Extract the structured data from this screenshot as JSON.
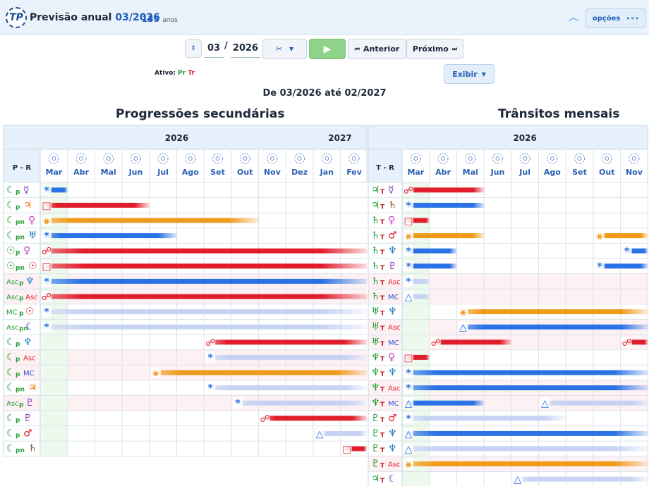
{
  "header": {
    "title_prefix": "Previsão anual",
    "title_date": "03/2026",
    "age_value": "135",
    "age_unit": "anos",
    "options_label": "opções"
  },
  "toolbar": {
    "month": "03",
    "year": "2026",
    "prev_label": "Anterior",
    "next_label": "Próximo",
    "show_label": "Exibir"
  },
  "active": {
    "label": "Ativo:",
    "codes": [
      "Pr",
      "Tr"
    ]
  },
  "range_text": "De 03/2026 até 02/2027",
  "colors": {
    "blue": "#2a72e6",
    "red": "#e01e2b",
    "orange": "#f09a1a",
    "light_blue": "#c7d3f3",
    "pink_row": "#fdf1f4",
    "green_col": "#eef9ee"
  },
  "progressions": {
    "title": "Progressões secundárias",
    "header_label": "P - R",
    "years": [
      {
        "label": "2026",
        "span": 10
      },
      {
        "label": "2027",
        "span": 2
      }
    ],
    "months": [
      "Mar",
      "Abr",
      "Mai",
      "Jun",
      "Jul",
      "Ago",
      "Set",
      "Out",
      "Nov",
      "Dez",
      "Jan",
      "Fev"
    ],
    "rows": [
      {
        "p": "☾",
        "ps": "p",
        "r": "☿",
        "rc": "#7b3fc4",
        "aspect": "*",
        "start": 0,
        "end": 1,
        "color": "blue",
        "hl": false
      },
      {
        "p": "☾",
        "ps": "p",
        "r": "♃",
        "rc": "#ee7a1a",
        "aspect": "□",
        "start": 0,
        "end": 4,
        "color": "red",
        "hl": false
      },
      {
        "p": "☾",
        "ps": "pn",
        "r": "♀",
        "rc": "#c43fc4",
        "aspect": "⚹",
        "start": 0,
        "end": 8,
        "color": "orange",
        "hl": false
      },
      {
        "p": "☾",
        "ps": "pn",
        "r": "♅",
        "rc": "#1d7fc4",
        "aspect": "*",
        "start": 0,
        "end": 5,
        "color": "blue",
        "hl": false
      },
      {
        "p": "☉",
        "ps": "p",
        "r": "♀",
        "rc": "#c43fc4",
        "aspect": "☍",
        "start": 0,
        "end": 12,
        "color": "red",
        "hl": false
      },
      {
        "p": "☉",
        "ps": "pn",
        "r": "☉",
        "rc": "#e01e2b",
        "aspect": "□",
        "start": 0,
        "end": 12,
        "color": "red",
        "hl": false
      },
      {
        "p": "Asc",
        "ps": "p",
        "r": "♆",
        "rc": "#1d7fc4",
        "aspect": "*",
        "start": 0,
        "end": 12,
        "color": "blue",
        "hl": true
      },
      {
        "p": "Asc",
        "ps": "p",
        "r": "Asc",
        "rc": "#e01e2b",
        "aspect": "☍",
        "start": 0,
        "end": 12,
        "color": "red",
        "hl": true
      },
      {
        "p": "MC",
        "ps": "p",
        "r": "☉",
        "rc": "#e01e2b",
        "aspect": "*",
        "start": 0,
        "end": 12,
        "color": "light_blue",
        "hl": false
      },
      {
        "p": "Asc",
        "ps": "pn",
        "r": "☾",
        "rc": "#2a4fd0",
        "aspect": "*",
        "start": 0,
        "end": 12,
        "color": "light_blue",
        "hl": false
      },
      {
        "p": "☾",
        "ps": "p",
        "r": "♆",
        "rc": "#1d7fc4",
        "aspect": "☍",
        "start": 6,
        "end": 12,
        "color": "red",
        "hl": false
      },
      {
        "p": "☾",
        "ps": "p",
        "r": "Asc",
        "rc": "#e01e2b",
        "aspect": "*",
        "start": 6,
        "end": 12,
        "color": "light_blue",
        "hl": true
      },
      {
        "p": "☾",
        "ps": "p",
        "r": "MC",
        "rc": "#2a4fd0",
        "aspect": "⚹",
        "start": 4,
        "end": 12,
        "color": "orange",
        "hl": true
      },
      {
        "p": "☾",
        "ps": "pn",
        "r": "♃",
        "rc": "#ee7a1a",
        "aspect": "*",
        "start": 6,
        "end": 12,
        "color": "light_blue",
        "hl": false
      },
      {
        "p": "Asc",
        "ps": "p",
        "r": "♇",
        "rc": "#8a2fb8",
        "aspect": "*",
        "start": 7,
        "end": 12,
        "color": "light_blue",
        "hl": true
      },
      {
        "p": "☾",
        "ps": "p",
        "r": "♇",
        "rc": "#8a2fb8",
        "aspect": "☍",
        "start": 8,
        "end": 12,
        "color": "red",
        "hl": false
      },
      {
        "p": "☾",
        "ps": "p",
        "r": "♂",
        "rc": "#e01e2b",
        "aspect": "△",
        "start": 10,
        "end": 12,
        "color": "light_blue",
        "hl": false
      },
      {
        "p": "☾",
        "ps": "pn",
        "r": "♄",
        "rc": "#8a5a2b",
        "aspect": "□",
        "start": 11,
        "end": 12,
        "color": "red",
        "hl": false
      }
    ]
  },
  "transits": {
    "title": "Trânsitos mensais",
    "header_label": "T - R",
    "years": [
      {
        "label": "2026",
        "span": 9
      }
    ],
    "months": [
      "Mar",
      "Abr",
      "Mai",
      "Jun",
      "Jul",
      "Ago",
      "Set",
      "Out",
      "Nov"
    ],
    "rows": [
      {
        "p": "♃",
        "ps": "T",
        "r": "☿",
        "rc": "#7b3fc4",
        "marks": [
          {
            "aspect": "☍",
            "start": 0,
            "end": 3,
            "color": "red"
          }
        ],
        "hl": false
      },
      {
        "p": "♃",
        "ps": "T",
        "r": "♄",
        "rc": "#8a5a2b",
        "marks": [
          {
            "aspect": "*",
            "start": 0,
            "end": 3,
            "color": "blue"
          }
        ],
        "hl": false
      },
      {
        "p": "♄",
        "ps": "T",
        "r": "♀",
        "rc": "#c43fc4",
        "marks": [
          {
            "aspect": "□",
            "start": 0,
            "end": 1,
            "color": "red"
          }
        ],
        "hl": false
      },
      {
        "p": "♄",
        "ps": "T",
        "r": "♂",
        "rc": "#e01e2b",
        "marks": [
          {
            "aspect": "⚹",
            "start": 0,
            "end": 3,
            "color": "orange"
          },
          {
            "aspect": "⚹",
            "start": 7,
            "end": 9,
            "color": "orange"
          }
        ],
        "hl": false
      },
      {
        "p": "♄",
        "ps": "T",
        "r": "♆",
        "rc": "#1d7fc4",
        "marks": [
          {
            "aspect": "*",
            "start": 0,
            "end": 2,
            "color": "blue"
          },
          {
            "aspect": "*",
            "start": 8,
            "end": 9,
            "color": "blue"
          }
        ],
        "hl": false
      },
      {
        "p": "♄",
        "ps": "T",
        "r": "♇",
        "rc": "#8a2fb8",
        "marks": [
          {
            "aspect": "*",
            "start": 0,
            "end": 2,
            "color": "blue"
          },
          {
            "aspect": "*",
            "start": 7,
            "end": 9,
            "color": "blue"
          }
        ],
        "hl": false
      },
      {
        "p": "♄",
        "ps": "T",
        "r": "Asc",
        "rc": "#e01e2b",
        "marks": [
          {
            "aspect": "*",
            "start": 0,
            "end": 1,
            "color": "light_blue"
          }
        ],
        "hl": true
      },
      {
        "p": "♄",
        "ps": "T",
        "r": "MC",
        "rc": "#2a4fd0",
        "marks": [
          {
            "aspect": "△",
            "start": 0,
            "end": 1,
            "color": "light_blue"
          }
        ],
        "hl": true
      },
      {
        "p": "♅",
        "ps": "T",
        "r": "♆",
        "rc": "#1d7fc4",
        "marks": [
          {
            "aspect": "⚹",
            "start": 2,
            "end": 9,
            "color": "orange"
          }
        ],
        "hl": false
      },
      {
        "p": "♅",
        "ps": "T",
        "r": "Asc",
        "rc": "#e01e2b",
        "marks": [
          {
            "aspect": "△",
            "start": 2,
            "end": 9,
            "color": "blue"
          }
        ],
        "hl": true
      },
      {
        "p": "♅",
        "ps": "T",
        "r": "MC",
        "rc": "#2a4fd0",
        "marks": [
          {
            "aspect": "☍",
            "start": 1,
            "end": 4,
            "color": "red"
          },
          {
            "aspect": "☍",
            "start": 8,
            "end": 9,
            "color": "red"
          }
        ],
        "hl": true
      },
      {
        "p": "♆",
        "ps": "T",
        "r": "♀",
        "rc": "#c43fc4",
        "marks": [
          {
            "aspect": "□",
            "start": 0,
            "end": 1,
            "color": "red"
          }
        ],
        "hl": false
      },
      {
        "p": "♆",
        "ps": "T",
        "r": "♆",
        "rc": "#1d7fc4",
        "marks": [
          {
            "aspect": "*",
            "start": 0,
            "end": 9,
            "color": "blue"
          }
        ],
        "hl": false
      },
      {
        "p": "♆",
        "ps": "T",
        "r": "Asc",
        "rc": "#e01e2b",
        "marks": [
          {
            "aspect": "*",
            "start": 0,
            "end": 9,
            "color": "blue"
          }
        ],
        "hl": true
      },
      {
        "p": "♆",
        "ps": "T",
        "r": "MC",
        "rc": "#2a4fd0",
        "marks": [
          {
            "aspect": "△",
            "start": 0,
            "end": 3,
            "color": "blue"
          },
          {
            "aspect": "△",
            "start": 5,
            "end": 9,
            "color": "light_blue"
          }
        ],
        "hl": true
      },
      {
        "p": "♇",
        "ps": "T",
        "r": "♂",
        "rc": "#e01e2b",
        "marks": [
          {
            "aspect": "*",
            "start": 0,
            "end": 6,
            "color": "light_blue"
          }
        ],
        "hl": false
      },
      {
        "p": "♇",
        "ps": "T",
        "r": "♆",
        "rc": "#1d7fc4",
        "marks": [
          {
            "aspect": "△",
            "start": 0,
            "end": 9,
            "color": "blue"
          }
        ],
        "hl": false
      },
      {
        "p": "♇",
        "ps": "T",
        "r": "♆",
        "rc": "#1d7fc4",
        "marks": [
          {
            "aspect": "△",
            "start": 0,
            "end": 9,
            "color": "light_blue"
          }
        ],
        "hl": false
      },
      {
        "p": "♇",
        "ps": "T",
        "r": "Asc",
        "rc": "#e01e2b",
        "marks": [
          {
            "aspect": "⚹",
            "start": 0,
            "end": 9,
            "color": "orange"
          }
        ],
        "hl": true
      },
      {
        "p": "♃",
        "ps": "T",
        "r": "☾",
        "rc": "#2a4fd0",
        "marks": [
          {
            "aspect": "△",
            "start": 4,
            "end": 9,
            "color": "light_blue"
          }
        ],
        "hl": false
      }
    ]
  }
}
